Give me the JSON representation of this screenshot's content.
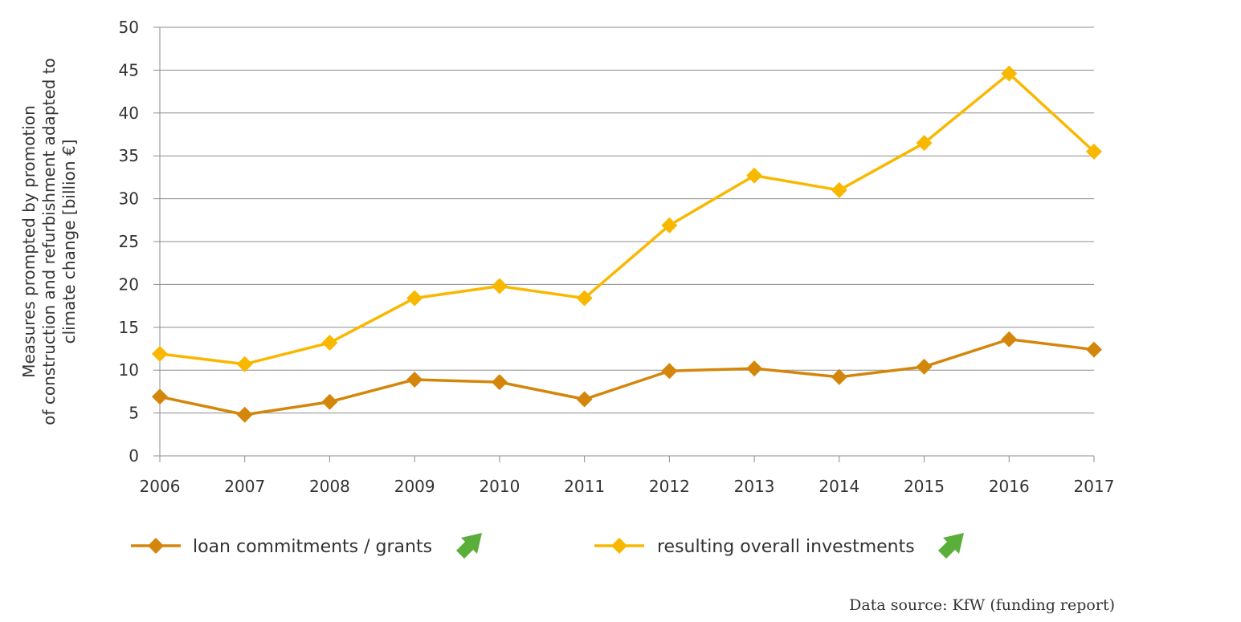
{
  "chart_data": {
    "type": "line",
    "x": [
      "2006",
      "2007",
      "2008",
      "2009",
      "2010",
      "2011",
      "2012",
      "2013",
      "2014",
      "2015",
      "2016",
      "2017"
    ],
    "ylim": [
      0,
      50
    ],
    "yticks": [
      0,
      5,
      10,
      15,
      20,
      25,
      30,
      35,
      40,
      45,
      50
    ],
    "ylabel_lines": [
      "Measures prompted by promotion",
      "of construction and refurbishment adapted to",
      "climate change [billion €]"
    ],
    "grid": true,
    "legend_position": "bottom",
    "series": [
      {
        "name": "loan commitments / grants",
        "color": "#D4860B",
        "marker": "diamond",
        "trend_icon": "up-right-arrow-icon",
        "values": [
          6.9,
          4.8,
          6.3,
          8.9,
          8.6,
          6.6,
          9.9,
          10.2,
          9.2,
          10.4,
          13.6,
          12.4
        ]
      },
      {
        "name": "resulting overall investments",
        "color": "#F9B800",
        "marker": "diamond",
        "trend_icon": "up-right-arrow-icon",
        "values": [
          11.9,
          10.7,
          13.2,
          18.4,
          19.8,
          18.4,
          26.9,
          32.7,
          31.0,
          36.5,
          44.6,
          35.5
        ]
      }
    ],
    "trend_icon_color": "#5AAE3A",
    "source": "Data source: KfW (funding report)"
  }
}
